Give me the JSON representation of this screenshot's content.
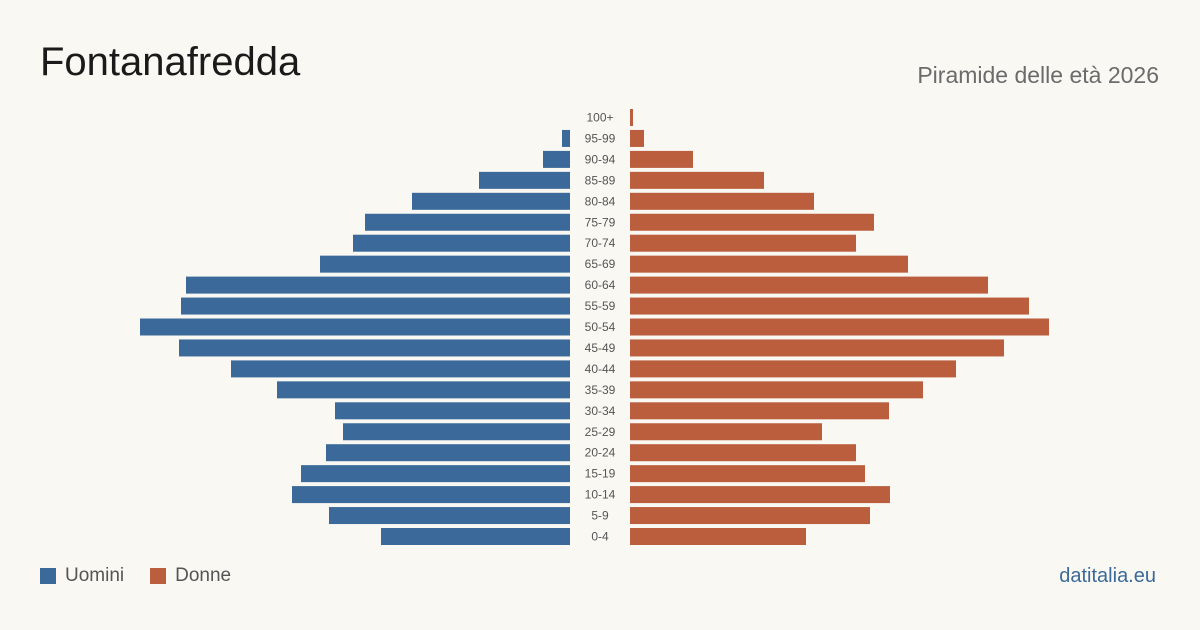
{
  "header": {
    "title": "Fontanafredda",
    "subtitle": "Piramide delle età 2026"
  },
  "legend": {
    "men_label": "Uomini",
    "women_label": "Donne"
  },
  "brand": "datitalia.eu",
  "colors": {
    "men": "#3b6a9a",
    "women": "#bb5e3d",
    "background": "#faf8f3"
  },
  "chart_data": {
    "type": "bar",
    "orientation": "horizontal",
    "categories": [
      "0-4",
      "5-9",
      "10-14",
      "15-19",
      "20-24",
      "25-29",
      "30-34",
      "35-39",
      "40-44",
      "45-49",
      "50-54",
      "55-59",
      "60-64",
      "65-69",
      "70-74",
      "75-79",
      "80-84",
      "85-89",
      "90-94",
      "95-99",
      "100+"
    ],
    "series": [
      {
        "name": "Uomini",
        "values": [
          189,
          241,
          278,
          269,
          244,
          227,
          235,
          293,
          339,
          391,
          430,
          389,
          384,
          250,
          217,
          205,
          158,
          91,
          27,
          8,
          0
        ]
      },
      {
        "name": "Donne",
        "values": [
          176,
          240,
          260,
          235,
          226,
          192,
          259,
          293,
          326,
          374,
          419,
          399,
          358,
          278,
          226,
          244,
          184,
          134,
          63,
          14,
          3
        ]
      }
    ],
    "legend_position": "bottom-left",
    "grid": false
  }
}
